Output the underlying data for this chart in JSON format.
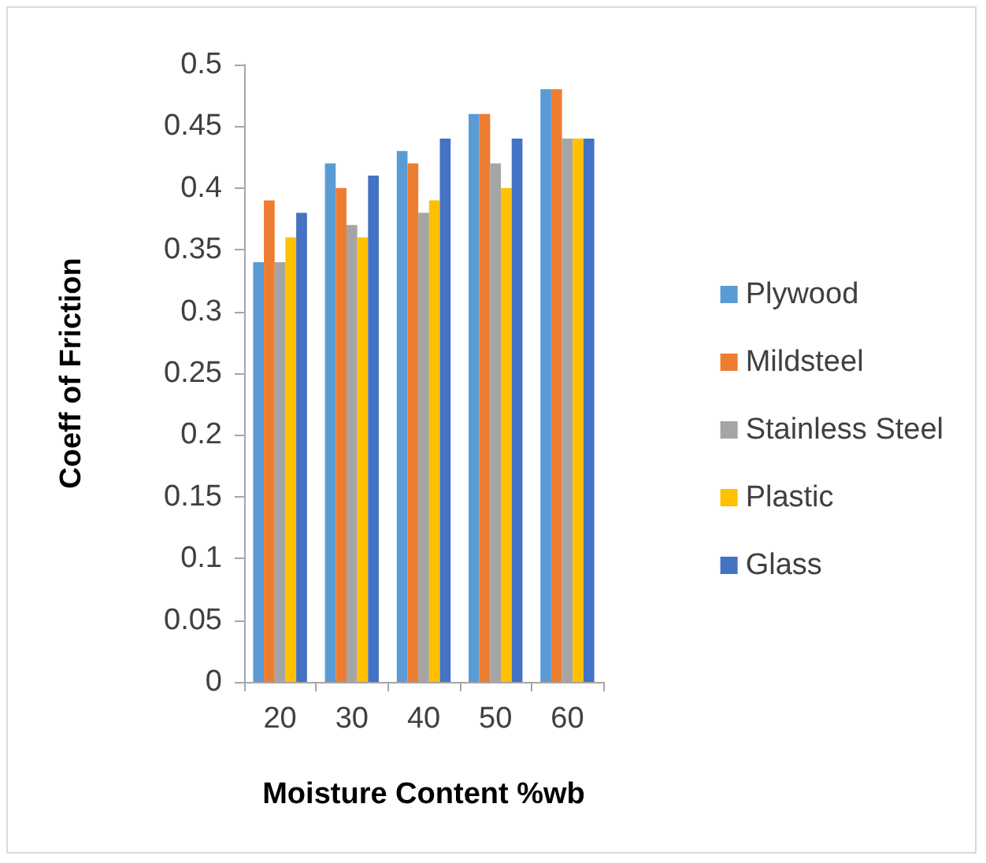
{
  "chart_data": {
    "type": "bar",
    "xlabel": "Moisture Content %wb",
    "ylabel": "Coeff of Friction",
    "categories": [
      "20",
      "30",
      "40",
      "50",
      "60"
    ],
    "series": [
      {
        "name": "Plywood",
        "color": "#5b9bd5",
        "values": [
          0.34,
          0.42,
          0.43,
          0.46,
          0.48
        ]
      },
      {
        "name": "Mildsteel",
        "color": "#ed7d31",
        "values": [
          0.39,
          0.4,
          0.42,
          0.46,
          0.48
        ]
      },
      {
        "name": "Stainless Steel",
        "color": "#a5a5a5",
        "values": [
          0.34,
          0.37,
          0.38,
          0.42,
          0.44
        ]
      },
      {
        "name": "Plastic",
        "color": "#ffc000",
        "values": [
          0.36,
          0.36,
          0.39,
          0.4,
          0.44
        ]
      },
      {
        "name": "Glass",
        "color": "#4472c4",
        "values": [
          0.38,
          0.41,
          0.44,
          0.44,
          0.44
        ]
      }
    ],
    "ylim": [
      0,
      0.5
    ],
    "yticks": [
      0,
      0.05,
      0.1,
      0.15,
      0.2,
      0.25,
      0.3,
      0.35,
      0.4,
      0.45,
      0.5
    ],
    "grid": false,
    "legend": "right"
  }
}
